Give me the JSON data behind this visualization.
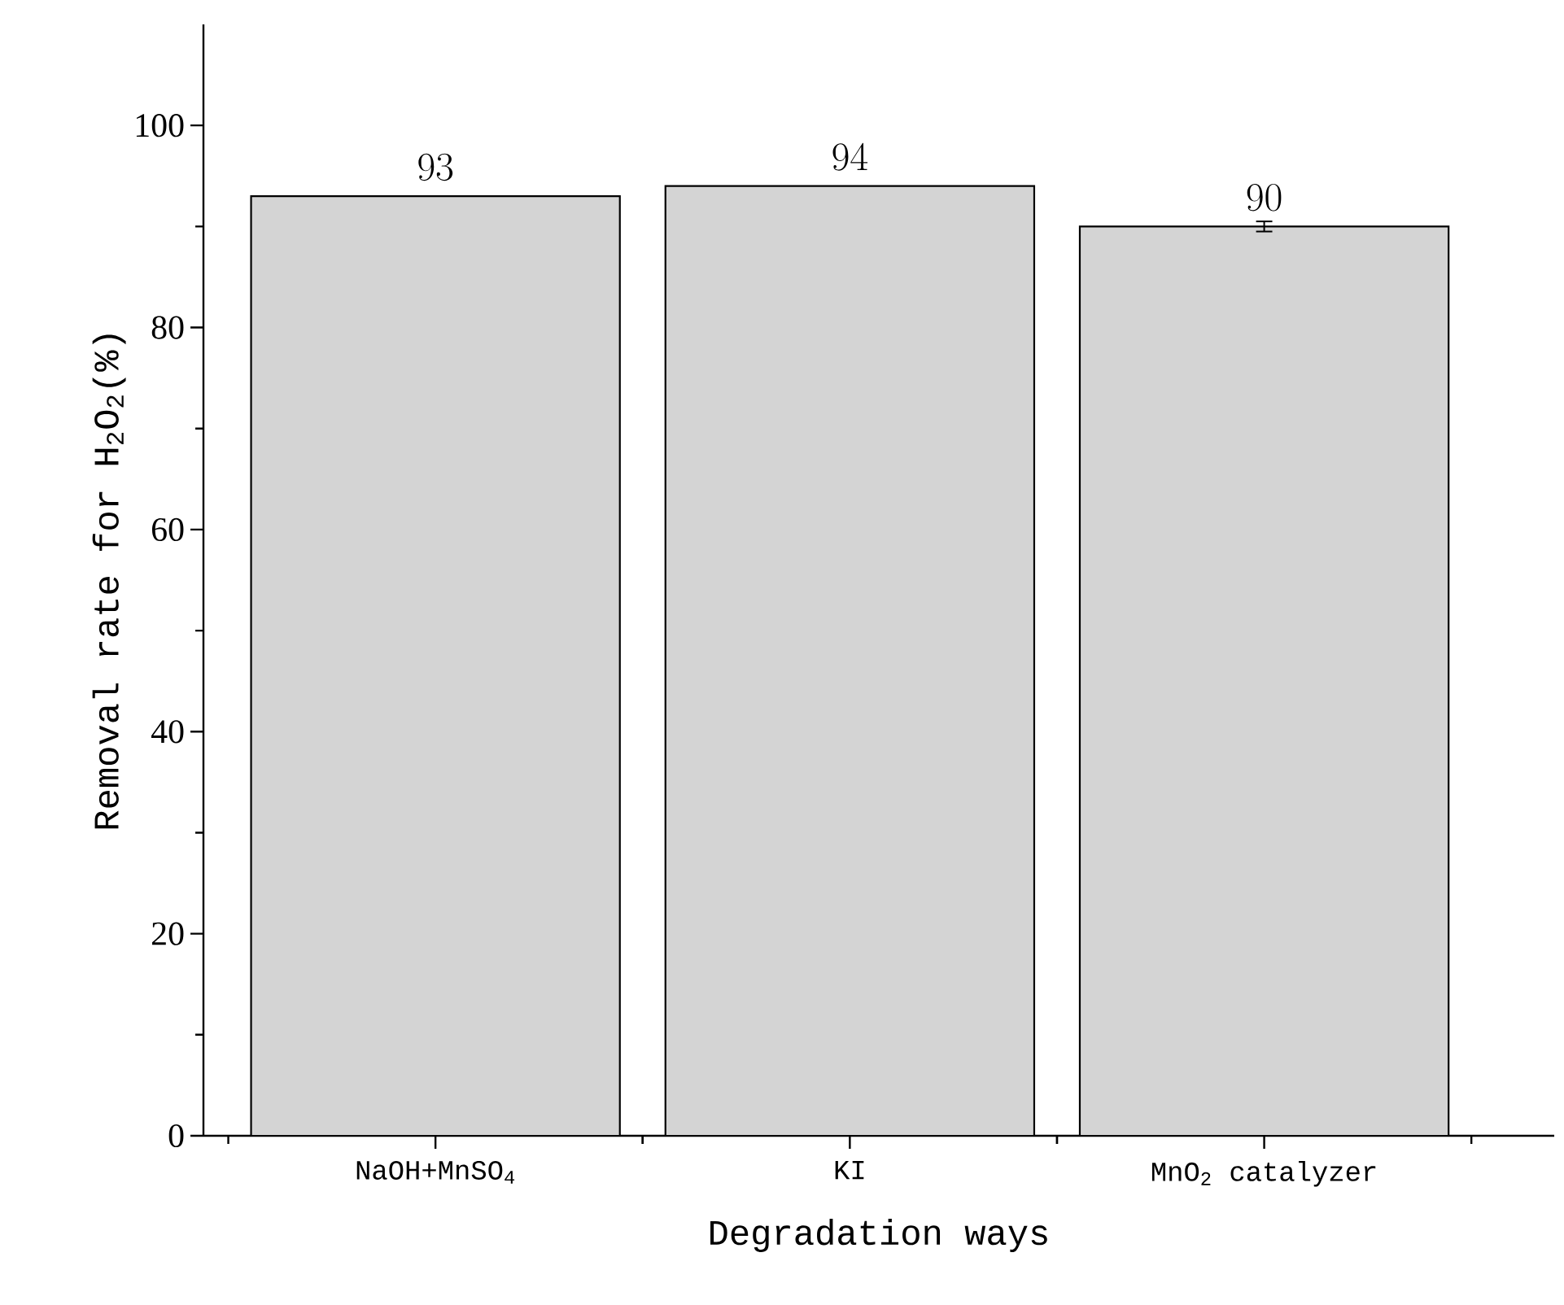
{
  "chart_data": {
    "type": "bar",
    "xlabel": "Degradation ways",
    "ylabel": "Removal rate for H$_{2}$O$_{2}$(%)",
    "categories": [
      "NaOH+MnSO$_{4}$",
      "KI",
      "MnO$_{2}$  catalyzer"
    ],
    "values": [
      93,
      94,
      90
    ],
    "errors": [
      null,
      null,
      0.5
    ],
    "color": "#d4d4d4",
    "ylim": [
      0,
      110
    ],
    "yticks": [
      0,
      20,
      40,
      60,
      80,
      100
    ],
    "data_labels": true
  }
}
